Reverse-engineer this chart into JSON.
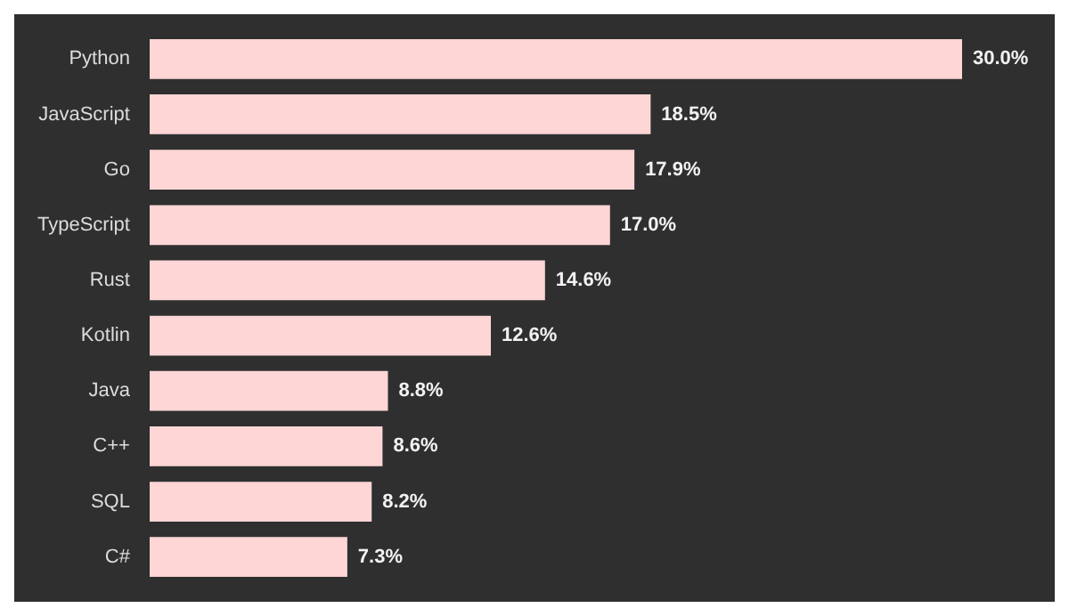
{
  "chart_data": {
    "type": "bar",
    "orientation": "horizontal",
    "categories": [
      "Python",
      "JavaScript",
      "Go",
      "TypeScript",
      "Rust",
      "Kotlin",
      "Java",
      "C++",
      "SQL",
      "C#"
    ],
    "values": [
      30.0,
      18.5,
      17.9,
      17.0,
      14.6,
      12.6,
      8.8,
      8.6,
      8.2,
      7.3
    ],
    "value_labels": [
      "30.0%",
      "18.5%",
      "17.9%",
      "17.0%",
      "14.6%",
      "12.6%",
      "8.8%",
      "8.6%",
      "8.2%",
      "7.3%"
    ],
    "color": "#ffd6d6",
    "legend": false
  }
}
